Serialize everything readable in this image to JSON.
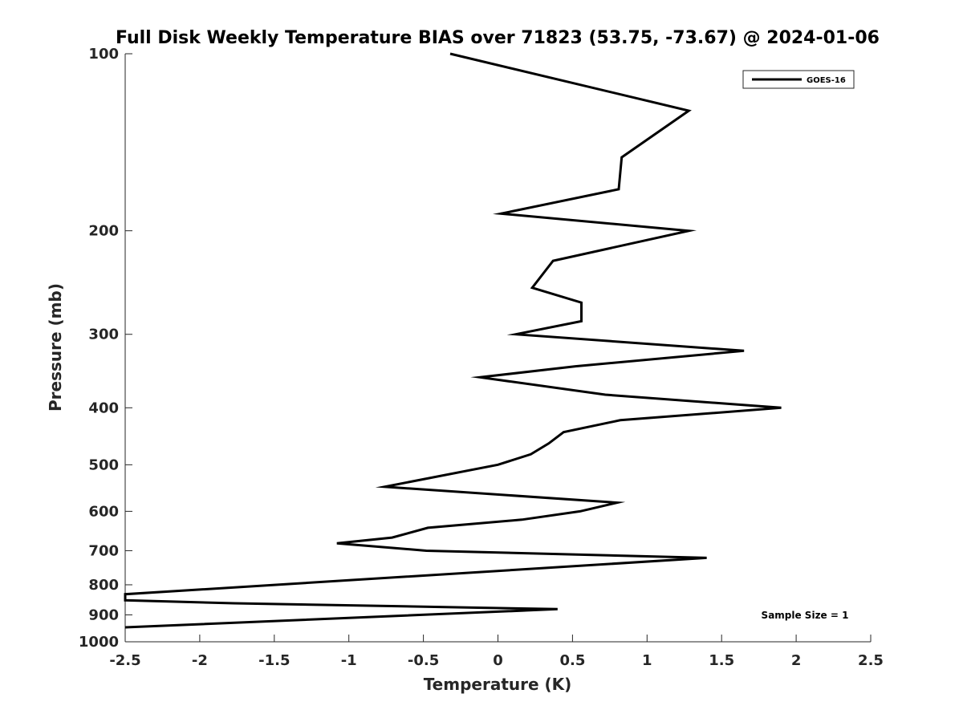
{
  "chart_data": {
    "type": "line",
    "title": "Full Disk Weekly Temperature BIAS over 71823 (53.75, -73.67) @ 2024-01-06",
    "xlabel": "Temperature (K)",
    "ylabel": "Pressure (mb)",
    "xlim": [
      -2.5,
      2.5
    ],
    "ylim": [
      100,
      1000
    ],
    "y_scale": "log",
    "y_reversed": true,
    "grid": false,
    "legend_position": "top-right",
    "xticks": [
      "-2.5",
      "-2",
      "-1.5",
      "-1",
      "-0.5",
      "0",
      "0.5",
      "1",
      "1.5",
      "2",
      "2.5"
    ],
    "yticks": [
      "100",
      "200",
      "300",
      "400",
      "500",
      "600",
      "700",
      "800",
      "900",
      "1000"
    ],
    "annotation": "Sample Size = 1",
    "series": [
      {
        "name": "GOES-16",
        "color": "#000000",
        "points": [
          {
            "x": -0.32,
            "y": 100
          },
          {
            "x": 1.28,
            "y": 125
          },
          {
            "x": 0.83,
            "y": 150
          },
          {
            "x": 0.81,
            "y": 170
          },
          {
            "x": 0.02,
            "y": 187
          },
          {
            "x": 1.28,
            "y": 200
          },
          {
            "x": 0.37,
            "y": 225
          },
          {
            "x": 0.23,
            "y": 250
          },
          {
            "x": 0.56,
            "y": 265
          },
          {
            "x": 0.56,
            "y": 285
          },
          {
            "x": 0.12,
            "y": 300
          },
          {
            "x": 1.65,
            "y": 320
          },
          {
            "x": 0.52,
            "y": 340
          },
          {
            "x": -0.12,
            "y": 355
          },
          {
            "x": 0.72,
            "y": 380
          },
          {
            "x": 1.9,
            "y": 400
          },
          {
            "x": 0.82,
            "y": 420
          },
          {
            "x": 0.44,
            "y": 440
          },
          {
            "x": 0.34,
            "y": 460
          },
          {
            "x": 0.22,
            "y": 480
          },
          {
            "x": 0.0,
            "y": 500
          },
          {
            "x": -0.76,
            "y": 545
          },
          {
            "x": 0.8,
            "y": 580
          },
          {
            "x": 0.55,
            "y": 600
          },
          {
            "x": 0.16,
            "y": 620
          },
          {
            "x": -0.47,
            "y": 640
          },
          {
            "x": -0.71,
            "y": 665
          },
          {
            "x": -1.08,
            "y": 680
          },
          {
            "x": -0.48,
            "y": 700
          },
          {
            "x": 1.4,
            "y": 720
          },
          {
            "x": -2.5,
            "y": 830
          },
          {
            "x": -2.5,
            "y": 850
          },
          {
            "x": -1.77,
            "y": 860
          },
          {
            "x": 0.4,
            "y": 880
          },
          {
            "x": -2.5,
            "y": 945
          }
        ]
      }
    ]
  }
}
